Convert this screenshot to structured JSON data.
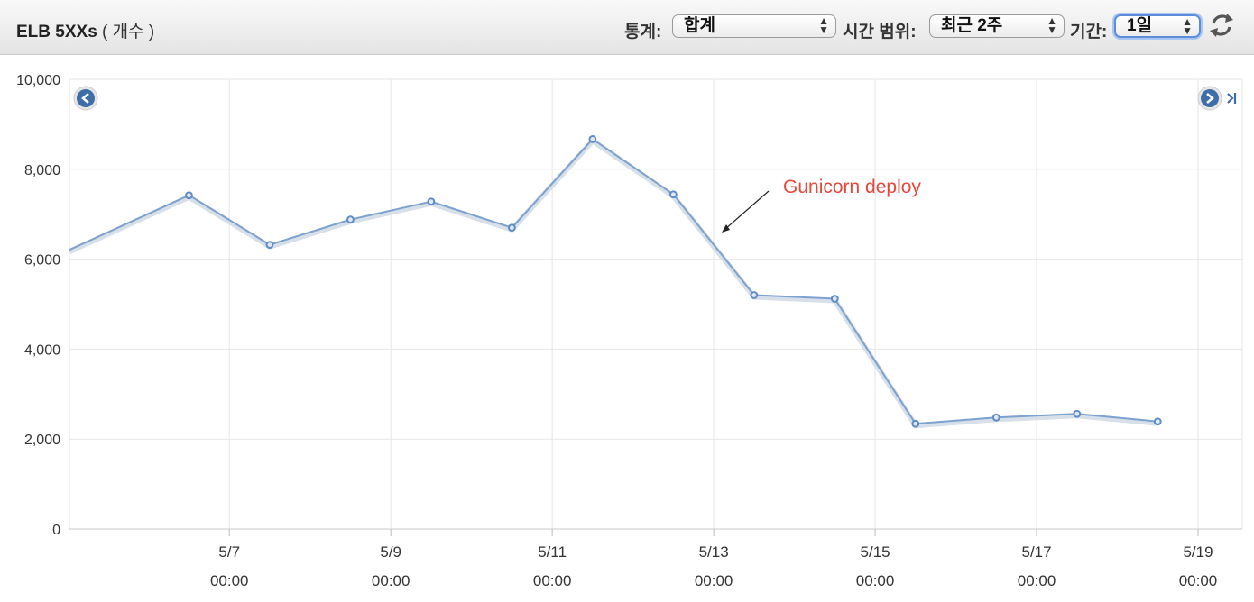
{
  "header": {
    "metric_name": "ELB 5XXs",
    "unit": "( 개수 )",
    "statistic_label": "통계:",
    "statistic_value": "합계",
    "time_range_label": "시간 범위:",
    "time_range_value": "최근 2주",
    "period_label": "기간:",
    "period_value": "1일"
  },
  "icons": {
    "refresh": "refresh-icon",
    "prev": "chevron-left-icon",
    "next": "chevron-right-icon",
    "last": "skip-to-end-icon"
  },
  "colors": {
    "line": "#7da2cf",
    "annotation": "#e8473c"
  },
  "chart_data": {
    "type": "line",
    "title": "",
    "xlabel": "",
    "ylabel": "",
    "ylim": [
      0,
      10000
    ],
    "yticks": [
      "0",
      "2,000",
      "4,000",
      "6,000",
      "8,000",
      "10,000"
    ],
    "xticks": [
      {
        "date": "5/7",
        "time": "00:00"
      },
      {
        "date": "5/9",
        "time": "00:00"
      },
      {
        "date": "5/11",
        "time": "00:00"
      },
      {
        "date": "5/13",
        "time": "00:00"
      },
      {
        "date": "5/15",
        "time": "00:00"
      },
      {
        "date": "5/17",
        "time": "00:00"
      },
      {
        "date": "5/19",
        "time": "00:00"
      }
    ],
    "grid": true,
    "series": [
      {
        "x": [
          "5/5 12:00",
          "5/6 12:00",
          "5/7 12:00",
          "5/8 12:00",
          "5/9 12:00",
          "5/10 12:00",
          "5/11 12:00",
          "5/12 12:00",
          "5/13 12:00",
          "5/14 12:00",
          "5/15 12:00",
          "5/16 12:00",
          "5/17 12:00",
          "5/18 12:00"
        ],
        "values": [
          6750,
          7420,
          6320,
          6880,
          7280,
          6700,
          8670,
          7440,
          5200,
          5120,
          2340,
          2480,
          2560,
          2390
        ]
      }
    ],
    "annotations": [
      {
        "text": "Gunicorn deploy",
        "date": "5/13"
      }
    ]
  }
}
